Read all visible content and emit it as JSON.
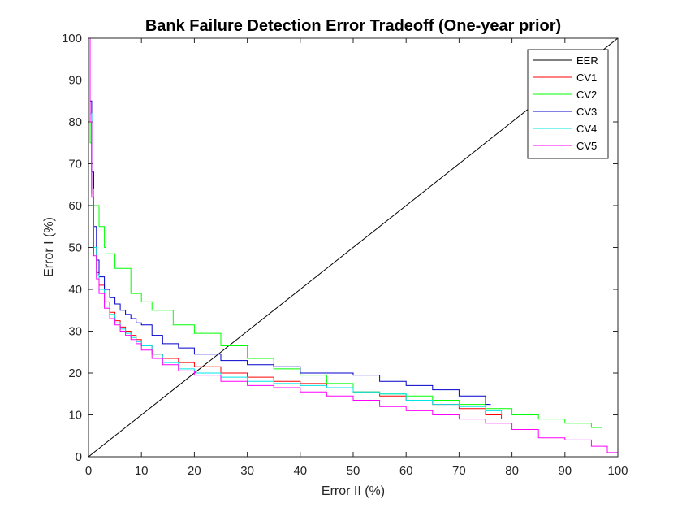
{
  "chart_data": {
    "type": "line",
    "title": "Bank Failure Detection Error Tradeoff (One-year prior)",
    "xlabel": "Error II (%)",
    "ylabel": "Error I (%)",
    "xlim": [
      0,
      100
    ],
    "ylim": [
      0,
      100
    ],
    "xticks": [
      0,
      10,
      20,
      30,
      40,
      50,
      60,
      70,
      80,
      90,
      100
    ],
    "yticks": [
      0,
      10,
      20,
      30,
      40,
      50,
      60,
      70,
      80,
      90,
      100
    ],
    "grid": false,
    "legend_position": "top-right",
    "series": [
      {
        "name": "EER",
        "color": "#000000",
        "x": [
          0,
          100
        ],
        "y": [
          0,
          100
        ]
      },
      {
        "name": "CV1",
        "color": "#ff0000",
        "x": [
          0,
          0.3,
          0.6,
          1,
          1.5,
          2,
          3,
          4,
          5,
          6,
          7,
          8,
          9,
          10,
          12,
          14,
          17,
          20,
          25,
          30,
          35,
          40,
          45,
          50,
          55,
          60,
          65,
          70,
          75,
          78
        ],
        "y": [
          100,
          80,
          63,
          50,
          44,
          41,
          37,
          34.5,
          32.5,
          31,
          30,
          29,
          28,
          26.5,
          24.5,
          23.5,
          22.5,
          21.5,
          20,
          19,
          18,
          17.5,
          16.5,
          15.5,
          14.5,
          13.5,
          12.5,
          11.5,
          10,
          9
        ]
      },
      {
        "name": "CV2",
        "color": "#00ff00",
        "x": [
          0,
          0.3,
          0.6,
          1,
          2,
          3,
          3.3,
          5,
          8,
          10,
          12,
          16,
          20,
          25,
          30,
          35,
          40,
          45,
          50,
          55,
          60,
          65,
          70,
          75,
          80,
          85,
          90,
          95,
          97
        ],
        "y": [
          100,
          75,
          63,
          60,
          55,
          50,
          48.5,
          45,
          39,
          37,
          35,
          31.5,
          29.5,
          26.5,
          23.5,
          21,
          19.5,
          17.5,
          15.5,
          15,
          14.5,
          13.5,
          12.5,
          11.5,
          10,
          9,
          8,
          7,
          6.5
        ]
      },
      {
        "name": "CV3",
        "color": "#0000cc",
        "x": [
          0,
          0.3,
          0.6,
          1,
          1.5,
          2,
          3,
          4,
          5,
          6,
          7,
          8,
          9,
          10,
          12,
          14,
          17,
          20,
          25,
          30,
          35,
          40,
          45,
          50,
          55,
          60,
          65,
          70,
          75,
          76
        ],
        "y": [
          100,
          85,
          68,
          55,
          47,
          43,
          40,
          38,
          36.5,
          35,
          34,
          33,
          32,
          31.5,
          29,
          27,
          26,
          24.5,
          23,
          22,
          21.5,
          20,
          20,
          19.5,
          18,
          17,
          16,
          14.5,
          12.5,
          12.5
        ]
      },
      {
        "name": "CV4",
        "color": "#00e5e5",
        "x": [
          0,
          0.3,
          0.6,
          1,
          1.5,
          2,
          3,
          4,
          5,
          6,
          7,
          8,
          9,
          10,
          12,
          14,
          17,
          20,
          25,
          30,
          35,
          40,
          45,
          50,
          55,
          60,
          65,
          70,
          75,
          78
        ],
        "y": [
          100,
          82,
          64,
          50,
          43.5,
          40,
          36,
          34,
          32,
          30.5,
          29.5,
          28.5,
          27.5,
          26.5,
          24.5,
          22.5,
          21,
          20,
          19,
          18,
          17.5,
          17,
          16.5,
          15.5,
          15,
          13.5,
          12.5,
          12,
          11,
          10
        ]
      },
      {
        "name": "CV5",
        "color": "#ff00ff",
        "x": [
          0,
          0.3,
          0.6,
          1,
          1.5,
          2,
          3,
          4,
          5,
          6,
          7,
          8,
          9,
          10,
          12,
          14,
          17,
          20,
          25,
          30,
          35,
          40,
          45,
          50,
          55,
          60,
          65,
          70,
          75,
          80,
          85,
          90,
          95,
          98,
          100
        ],
        "y": [
          100,
          80,
          62,
          48,
          42.5,
          39,
          35.5,
          33,
          31.5,
          30,
          29,
          28,
          27,
          25.5,
          23.5,
          22,
          20.5,
          19.5,
          18,
          17,
          16.5,
          15.5,
          14.5,
          13.5,
          12,
          11,
          10,
          9,
          8,
          6.5,
          4.5,
          4,
          2.5,
          1,
          0
        ]
      }
    ]
  }
}
